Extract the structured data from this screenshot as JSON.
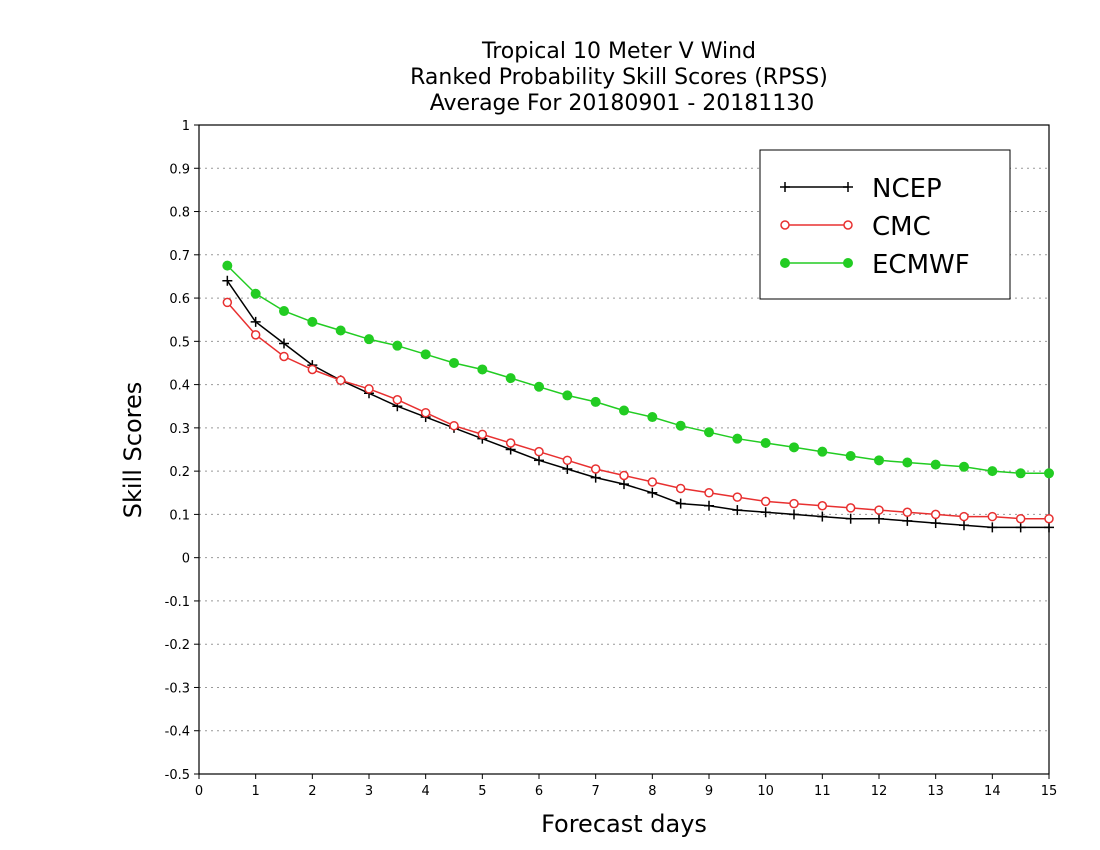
{
  "chart_data": {
    "type": "line",
    "title": [
      "Tropical 10 Meter V Wind",
      "Ranked Probability Skill Scores (RPSS)",
      "Average For 20180901 - 20181130"
    ],
    "xlabel": "Forecast days",
    "ylabel": "Skill Scores",
    "xlim": [
      0,
      15
    ],
    "ylim": [
      -0.5,
      1
    ],
    "xticks": [
      0,
      1,
      2,
      3,
      4,
      5,
      6,
      7,
      8,
      9,
      10,
      11,
      12,
      13,
      14,
      15
    ],
    "xtick_labels": [
      "0",
      "1",
      "2",
      "3",
      "4",
      "5",
      "6",
      "7",
      "8",
      "9",
      "10",
      "11",
      "12",
      "13",
      "14",
      "15"
    ],
    "yticks": [
      -0.5,
      -0.4,
      -0.3,
      -0.2,
      -0.1,
      0,
      0.1,
      0.2,
      0.3,
      0.4,
      0.5,
      0.6,
      0.7,
      0.8,
      0.9,
      1
    ],
    "ytick_labels": [
      "-0.5",
      "-0.4",
      "-0.3",
      "-0.2",
      "-0.1",
      "0",
      "0.1",
      "0.2",
      "0.3",
      "0.4",
      "0.5",
      "0.6",
      "0.7",
      "0.8",
      "0.9",
      "1"
    ],
    "grid": "horizontal dotted",
    "legend_position": "top-right",
    "x": [
      0.5,
      1,
      1.5,
      2,
      2.5,
      3,
      3.5,
      4,
      4.5,
      5,
      5.5,
      6,
      6.5,
      7,
      7.5,
      8,
      8.5,
      9,
      9.5,
      10,
      10.5,
      11,
      11.5,
      12,
      12.5,
      13,
      13.5,
      14,
      14.5,
      15
    ],
    "series": [
      {
        "name": "NCEP",
        "color": "#000000",
        "marker": "plus",
        "values": [
          0.64,
          0.545,
          0.495,
          0.445,
          0.41,
          0.38,
          0.35,
          0.325,
          0.3,
          0.275,
          0.25,
          0.225,
          0.205,
          0.185,
          0.17,
          0.15,
          0.125,
          0.12,
          0.11,
          0.105,
          0.1,
          0.095,
          0.09,
          0.09,
          0.085,
          0.08,
          0.075,
          0.07,
          0.07,
          0.07
        ]
      },
      {
        "name": "CMC",
        "color": "#e83030",
        "marker": "open-circle",
        "values": [
          0.59,
          0.515,
          0.465,
          0.435,
          0.41,
          0.39,
          0.365,
          0.335,
          0.305,
          0.285,
          0.265,
          0.245,
          0.225,
          0.205,
          0.19,
          0.175,
          0.16,
          0.15,
          0.14,
          0.13,
          0.125,
          0.12,
          0.115,
          0.11,
          0.105,
          0.1,
          0.095,
          0.095,
          0.09,
          0.09
        ]
      },
      {
        "name": "ECMWF",
        "color": "#22cc22",
        "marker": "filled-circle",
        "values": [
          0.675,
          0.61,
          0.57,
          0.545,
          0.525,
          0.505,
          0.49,
          0.47,
          0.45,
          0.435,
          0.415,
          0.395,
          0.375,
          0.36,
          0.34,
          0.325,
          0.305,
          0.29,
          0.275,
          0.265,
          0.255,
          0.245,
          0.235,
          0.225,
          0.22,
          0.215,
          0.21,
          0.2,
          0.195,
          0.195
        ]
      }
    ]
  }
}
